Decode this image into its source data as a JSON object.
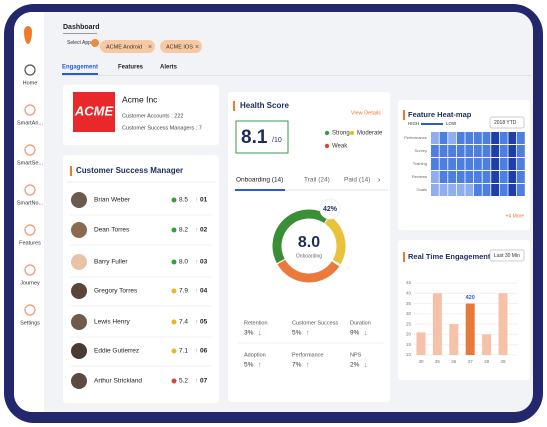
{
  "sidebar": {
    "items": [
      "Home",
      "SmartAn...",
      "SmartSe...",
      "SmartNo...",
      "Features",
      "Journey",
      "Settings"
    ]
  },
  "header": {
    "title": "Dashboard",
    "select_label": "Select App",
    "apps": [
      "ACME Android",
      "ACME IOS"
    ]
  },
  "tabs": [
    "Engagement",
    "Features",
    "Alerts"
  ],
  "company": {
    "logo": "ACME",
    "name": "Acme Inc",
    "accounts": "Customer Accounts : 222",
    "managers": "Customer Success Managers : 7"
  },
  "csm": {
    "title": "Customer Success Manager",
    "rows": [
      {
        "name": "Brian Weber",
        "score": 8.5,
        "rank": "01",
        "color": "#3a9b46"
      },
      {
        "name": "Dean Torres",
        "score": 8.2,
        "rank": "02",
        "color": "#3a9b46"
      },
      {
        "name": "Barry Fuller",
        "score": 8.0,
        "score_label": "8.0",
        "rank": "03",
        "color": "#3a9b46"
      },
      {
        "name": "Gregory Torres",
        "score": 7.9,
        "rank": "04",
        "color": "#e8b923"
      },
      {
        "name": "Lewis Henry",
        "score": 7.4,
        "rank": "05",
        "color": "#e8b923"
      },
      {
        "name": "Eddie Gutierrez",
        "score": 7.1,
        "rank": "06",
        "color": "#e8b923"
      },
      {
        "name": "Arthur Strickland",
        "score": 5.2,
        "rank": "07",
        "color": "#d9473a"
      }
    ]
  },
  "health": {
    "title": "Health Score",
    "link": "View Details",
    "score": "8.1",
    "scale": "/10",
    "legend": [
      {
        "name": "Strong",
        "color": "#3a9b46"
      },
      {
        "name": "Moderate",
        "color": "#e8b923"
      },
      {
        "name": "Weak",
        "color": "#d9473a"
      }
    ],
    "tabs": [
      "Onboarding (14)",
      "Trail (24)",
      "Paid (14)"
    ],
    "donut": {
      "percent": 42,
      "percent_label": "42%",
      "center": "8.0",
      "center_label": "Onboarding"
    },
    "metrics": [
      {
        "name": "Retention",
        "value": "3%",
        "trend": "down"
      },
      {
        "name": "Customer Success",
        "value": "5%",
        "trend": "up"
      },
      {
        "name": "Duration",
        "value": "9%",
        "trend": "down"
      },
      {
        "name": "Adoption",
        "value": "5%",
        "trend": "up"
      },
      {
        "name": "Performance",
        "value": "7%",
        "trend": "up"
      },
      {
        "name": "NPS",
        "value": "2%",
        "trend": "down"
      }
    ]
  },
  "heatmap": {
    "title": "Feature Heat-map",
    "high": "HIGH",
    "low": "LOW",
    "period": "2018 YTD",
    "rows": [
      "Performance",
      "Survey",
      "Training",
      "Reviews",
      "Goals"
    ],
    "more": "+4 More",
    "cells": [
      [
        1,
        2,
        1,
        2,
        2,
        2,
        2,
        3,
        2,
        3,
        2
      ],
      [
        2,
        2,
        2,
        2,
        2,
        2,
        2,
        3,
        2,
        3,
        2
      ],
      [
        2,
        2,
        2,
        2,
        2,
        2,
        2,
        3,
        2,
        3,
        2
      ],
      [
        1,
        2,
        2,
        2,
        2,
        2,
        2,
        3,
        2,
        3,
        2
      ],
      [
        1,
        1,
        1,
        1,
        1,
        2,
        2,
        3,
        2,
        3,
        2
      ]
    ]
  },
  "engagement": {
    "title": "Real Time Engagement",
    "range": "Last 30 Min",
    "type": "bar",
    "categories": [
      "30",
      "35",
      "36",
      "37",
      "38",
      "39"
    ],
    "values": [
      21,
      40,
      25,
      35,
      20,
      40
    ],
    "ylim": [
      10,
      45
    ],
    "yticks": [
      10,
      15,
      20,
      25,
      30,
      35,
      40,
      45
    ],
    "highlight": 3,
    "highlight_label": "420",
    "color": "#f6c1a9",
    "highlight_color": "#e8773a"
  }
}
